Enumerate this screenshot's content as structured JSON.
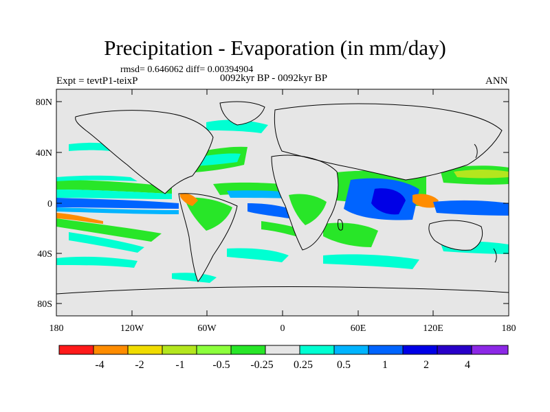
{
  "title": "Precipitation - Evaporation (in mm/day)",
  "stats": "rmsd= 0.646062 diff= 0.00394904",
  "experiment": "Expt = tevtP1-teixP",
  "period": "0092kyr BP - 0092kyr BP",
  "season": "ANN",
  "lat_labels": [
    "80N",
    "40N",
    "0",
    "40S",
    "80S"
  ],
  "lon_labels": [
    "180",
    "120W",
    "60W",
    "0",
    "60E",
    "120E",
    "180"
  ],
  "colorbar": {
    "colors": [
      "#ff1a1a",
      "#ff8c00",
      "#f0dc00",
      "#b4e61e",
      "#8cff3c",
      "#28e628",
      "#e6e6e6",
      "#00ffd2",
      "#00b4ff",
      "#0064ff",
      "#0000e6",
      "#2800c8",
      "#8c28e6"
    ],
    "labels": [
      "-4",
      "-2",
      "-1",
      "-0.5",
      "-0.25",
      "0.25",
      "0.5",
      "1",
      "2",
      "4"
    ]
  },
  "palette": {
    "ocean_neutral": "#e6e6e6",
    "coast": "#000000"
  }
}
